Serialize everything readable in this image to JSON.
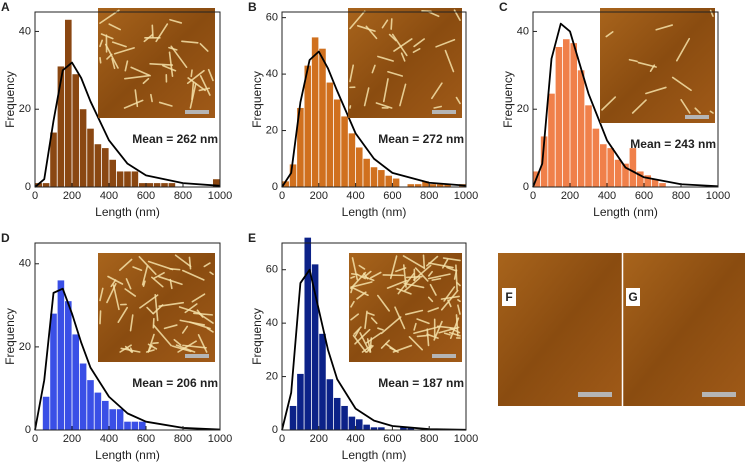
{
  "chart_data": [
    {
      "type": "histogram",
      "panel": "A",
      "xlabel": "Length (nm)",
      "ylabel": "Frequency",
      "annotation": "Mean = 262 nm",
      "color": "#8a4712",
      "bins": [
        0,
        40,
        80,
        120,
        160,
        200,
        240,
        280,
        320,
        360,
        400,
        440,
        480,
        520,
        560,
        600,
        640,
        680,
        720,
        760,
        800,
        840,
        880,
        920,
        960,
        1000
      ],
      "values": [
        1,
        1,
        14,
        31,
        43,
        29,
        20,
        15,
        11,
        10,
        7,
        4,
        4,
        4,
        1,
        1,
        1,
        1,
        1,
        0,
        0,
        0,
        0,
        0,
        2
      ],
      "fit": {
        "x": [
          0,
          50,
          100,
          150,
          200,
          250,
          300,
          400,
          500,
          600,
          800,
          1000
        ],
        "y": [
          0,
          2,
          17,
          30,
          32,
          28,
          22,
          12,
          6,
          3,
          1,
          0.3
        ],
        "color": "#000000"
      },
      "xlim": [
        0,
        1000
      ],
      "xticks": [
        0,
        200,
        400,
        600,
        800,
        1000
      ],
      "ylim": [
        0,
        45
      ],
      "yticks": [
        0,
        20,
        40
      ]
    },
    {
      "type": "histogram",
      "panel": "B",
      "xlabel": "Length (nm)",
      "ylabel": "Frequency",
      "annotation": "Mean = 272 nm",
      "color": "#d0701e",
      "bins": [
        0,
        40,
        80,
        120,
        160,
        200,
        240,
        280,
        320,
        360,
        400,
        440,
        480,
        520,
        560,
        600,
        640,
        680,
        720,
        760,
        800,
        840,
        880,
        920,
        960,
        1000
      ],
      "values": [
        2,
        8,
        28,
        43,
        53,
        49,
        37,
        31,
        25,
        19,
        14,
        10,
        7,
        6,
        4,
        3,
        0,
        1,
        1,
        2,
        1,
        1,
        1,
        0,
        1
      ],
      "fit": {
        "x": [
          0,
          50,
          100,
          150,
          200,
          250,
          300,
          400,
          500,
          600,
          800,
          1000
        ],
        "y": [
          0,
          5,
          30,
          45,
          48,
          42,
          34,
          19,
          10,
          5,
          1.5,
          0.5
        ],
        "color": "#000000"
      },
      "xlim": [
        0,
        1000
      ],
      "xticks": [
        0,
        200,
        400,
        600,
        800,
        1000
      ],
      "ylim": [
        0,
        62
      ],
      "yticks": [
        0,
        20,
        40,
        60
      ]
    },
    {
      "type": "histogram",
      "panel": "C",
      "xlabel": "Length (nm)",
      "ylabel": "Frequency",
      "annotation": "Mean = 243 nm",
      "color": "#f0804a",
      "bins": [
        0,
        40,
        80,
        120,
        160,
        200,
        240,
        280,
        320,
        360,
        400,
        440,
        480,
        520,
        560,
        600,
        640,
        680,
        720,
        760,
        800,
        840,
        880,
        920,
        960,
        1000
      ],
      "values": [
        4,
        13,
        24,
        36,
        38,
        37,
        30,
        21,
        15,
        11,
        10,
        7,
        6,
        10,
        4,
        3,
        2,
        1,
        0,
        0,
        0,
        0,
        0,
        0,
        0
      ],
      "fit": {
        "x": [
          0,
          50,
          100,
          150,
          200,
          250,
          300,
          400,
          500,
          600,
          800,
          1000
        ],
        "y": [
          0,
          6,
          33,
          42,
          40,
          32,
          24,
          12,
          5,
          2.5,
          0.7,
          0.2
        ],
        "color": "#000000"
      },
      "xlim": [
        0,
        1000
      ],
      "xticks": [
        0,
        200,
        400,
        600,
        800,
        1000
      ],
      "ylim": [
        0,
        45
      ],
      "yticks": [
        0,
        20,
        40
      ]
    },
    {
      "type": "histogram",
      "panel": "D",
      "xlabel": "Length (nm)",
      "ylabel": "Frequency",
      "annotation": "Mean = 206 nm",
      "color": "#3a4fe6",
      "bins": [
        0,
        40,
        80,
        120,
        160,
        200,
        240,
        280,
        320,
        360,
        400,
        440,
        480,
        520,
        560,
        600,
        640,
        680,
        720,
        760,
        800,
        840,
        880,
        920,
        960,
        1000
      ],
      "values": [
        0,
        8,
        28,
        36,
        31,
        23,
        16,
        12,
        9,
        7,
        5,
        5,
        2,
        2,
        2,
        0,
        0,
        0,
        0,
        0,
        0,
        0,
        0,
        0,
        0
      ],
      "fit": {
        "x": [
          0,
          50,
          100,
          150,
          200,
          250,
          300,
          400,
          500,
          600,
          800,
          1000
        ],
        "y": [
          0,
          12,
          33,
          34,
          28,
          21,
          15,
          8,
          4,
          2,
          0.5,
          0.1
        ],
        "color": "#000000"
      },
      "xlim": [
        0,
        1000
      ],
      "xticks": [
        0,
        200,
        400,
        600,
        800,
        1000
      ],
      "ylim": [
        0,
        45
      ],
      "yticks": [
        0,
        20,
        40
      ]
    },
    {
      "type": "histogram",
      "panel": "E",
      "xlabel": "Length (nm)",
      "ylabel": "Frequency",
      "annotation": "Mean = 187 nm",
      "color": "#0c2288",
      "bins": [
        0,
        40,
        80,
        120,
        160,
        200,
        240,
        280,
        320,
        360,
        400,
        440,
        480,
        520,
        560,
        600,
        640,
        680,
        720,
        760,
        800,
        840,
        880,
        920,
        960,
        1000
      ],
      "values": [
        0,
        9,
        21,
        72,
        62,
        36,
        19,
        12,
        9,
        5,
        4,
        2,
        1,
        1,
        0,
        0,
        1,
        1,
        0,
        0,
        0,
        0,
        0,
        0,
        0
      ],
      "fit": {
        "x": [
          0,
          50,
          100,
          150,
          200,
          250,
          300,
          400,
          500,
          600,
          800,
          1000
        ],
        "y": [
          0,
          14,
          55,
          60,
          45,
          30,
          19,
          8,
          3.5,
          1.5,
          0.3,
          0.1
        ],
        "color": "#000000"
      },
      "xlim": [
        0,
        1000
      ],
      "xticks": [
        0,
        200,
        400,
        600,
        800,
        1000
      ],
      "ylim": [
        0,
        70
      ],
      "yticks": [
        0,
        20,
        40,
        60
      ]
    }
  ],
  "images": {
    "labels": [
      "F",
      "G"
    ]
  }
}
